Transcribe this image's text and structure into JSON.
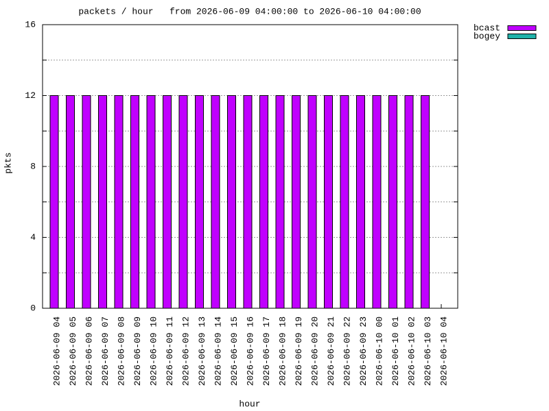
{
  "chart_data": {
    "type": "bar",
    "stacked": true,
    "title": "packets / hour   from 2026-06-09 04:00:00 to 2026-06-10 04:00:00",
    "x_label": "hour",
    "y_label": "pkts",
    "categories": [
      "2026-06-09 04",
      "2026-06-09 05",
      "2026-06-09 06",
      "2026-06-09 07",
      "2026-06-09 08",
      "2026-06-09 09",
      "2026-06-09 10",
      "2026-06-09 11",
      "2026-06-09 12",
      "2026-06-09 13",
      "2026-06-09 14",
      "2026-06-09 15",
      "2026-06-09 16",
      "2026-06-09 17",
      "2026-06-09 18",
      "2026-06-09 19",
      "2026-06-09 20",
      "2026-06-09 21",
      "2026-06-09 22",
      "2026-06-09 23",
      "2026-06-10 00",
      "2026-06-10 01",
      "2026-06-10 02",
      "2026-06-10 03",
      "2026-06-10 04"
    ],
    "series": [
      {
        "name": "bcast",
        "color": "#c000ff",
        "values": [
          12,
          12,
          12,
          12,
          12,
          12,
          12,
          12,
          12,
          12,
          12,
          12,
          12,
          12,
          12,
          12,
          12,
          12,
          12,
          12,
          12,
          12,
          12,
          12,
          null
        ]
      },
      {
        "name": "bogey",
        "color": "#20b2aa",
        "values": [
          0,
          0,
          0,
          0,
          0,
          0,
          0,
          0,
          0,
          0,
          0,
          0,
          0,
          0,
          0,
          0,
          0,
          0,
          0,
          0,
          0,
          0,
          0,
          0,
          null
        ]
      }
    ],
    "ylim": [
      0,
      16
    ],
    "yticks": [
      0,
      4,
      8,
      12,
      16
    ],
    "minor_yticks": [
      2,
      6,
      10,
      14
    ],
    "grid": true,
    "legend": "outside-top-right"
  }
}
